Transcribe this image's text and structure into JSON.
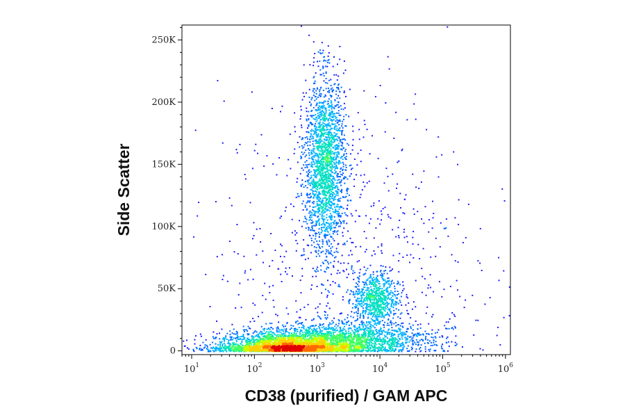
{
  "chart_data": {
    "type": "scatter",
    "subtype": "flow-cytometry-density-dot-plot",
    "title": "",
    "xlabel": "CD38 (purified) / GAM APC",
    "ylabel": "Side Scatter",
    "x_scale": "log",
    "xlim": [
      7,
      1200000
    ],
    "ylim": [
      -3000,
      262000
    ],
    "x_ticks": [
      {
        "value": 10,
        "base": "10",
        "exp": "1"
      },
      {
        "value": 100,
        "base": "10",
        "exp": "2"
      },
      {
        "value": 1000,
        "base": "10",
        "exp": "3"
      },
      {
        "value": 10000,
        "base": "10",
        "exp": "4"
      },
      {
        "value": 100000,
        "base": "10",
        "exp": "5"
      },
      {
        "value": 1000000,
        "base": "10",
        "exp": "6"
      }
    ],
    "y_ticks": [
      {
        "value": 0,
        "label": "0"
      },
      {
        "value": 50000,
        "label": "50K"
      },
      {
        "value": 100000,
        "label": "100K"
      },
      {
        "value": 150000,
        "label": "150K"
      },
      {
        "value": 200000,
        "label": "200K"
      },
      {
        "value": 250000,
        "label": "250K"
      }
    ],
    "grid": false,
    "legend": "none",
    "density_colors": [
      "#1a1aff",
      "#0066ff",
      "#00b4ff",
      "#00e0c0",
      "#40ff60",
      "#c8ff00",
      "#ffd000",
      "#ff6a00",
      "#e00000"
    ],
    "populations": [
      {
        "x_center": 300,
        "y_center": 3000,
        "x_spread_decades": 0.55,
        "y_spread": 6000,
        "count": 2600
      },
      {
        "x_center": 2500,
        "y_center": 9000,
        "x_spread_decades": 0.7,
        "y_spread": 7000,
        "count": 1800
      },
      {
        "x_center": 1300,
        "y_center": 150000,
        "x_spread_decades": 0.16,
        "y_spread": 35000,
        "count": 2000
      },
      {
        "x_center": 8500,
        "y_center": 42000,
        "x_spread_decades": 0.18,
        "y_spread": 11000,
        "count": 750
      },
      {
        "x_center": 3000,
        "y_center": 70000,
        "x_spread_decades": 1.0,
        "y_spread": 70000,
        "count": 750
      }
    ]
  }
}
